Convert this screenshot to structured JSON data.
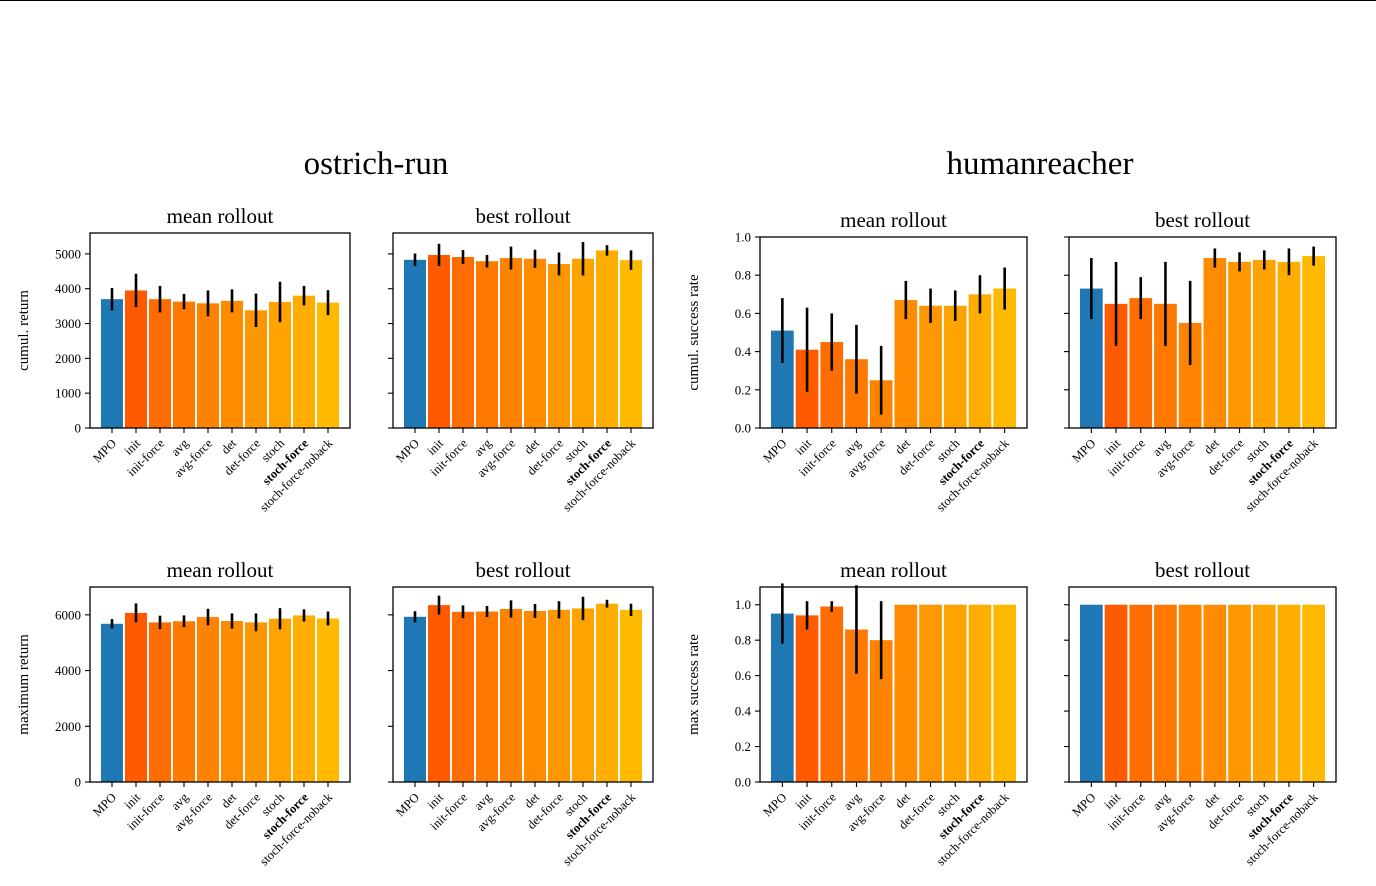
{
  "colors": {
    "MPO": "#1f77b4",
    "init": "#ff5a00",
    "init-force": "#ff6d00",
    "avg": "#ff7800",
    "avg-force": "#ff8200",
    "det": "#ff8c00",
    "det-force": "#ff9800",
    "stoch": "#ffa300",
    "stoch-force": "#ffae00",
    "stoch-force-noback": "#ffba00"
  },
  "groups": [
    {
      "title": "ostrich-run"
    },
    {
      "title": "humanreacher"
    }
  ],
  "chart_data": [
    {
      "id": "ostrich-mean-cumul",
      "group": 0,
      "type": "bar",
      "title": "mean rollout",
      "ylabel": "cumul. return",
      "ylim": [
        0,
        5600
      ],
      "yticks": [
        0,
        1000,
        2000,
        3000,
        4000,
        5000
      ],
      "show_yticklabels": true,
      "categories": [
        "MPO",
        "init",
        "init-force",
        "avg",
        "avg-force",
        "det",
        "det-force",
        "stoch",
        "stoch-force",
        "stoch-force-noback"
      ],
      "values": [
        3700,
        3950,
        3700,
        3630,
        3580,
        3650,
        3380,
        3620,
        3800,
        3600
      ],
      "errors": [
        320,
        480,
        380,
        220,
        370,
        330,
        480,
        580,
        280,
        360
      ]
    },
    {
      "id": "ostrich-best-cumul",
      "group": 0,
      "type": "bar",
      "title": "best rollout",
      "ylabel": "",
      "ylim": [
        0,
        5600
      ],
      "yticks": [
        0,
        1000,
        2000,
        3000,
        4000,
        5000
      ],
      "show_yticklabels": false,
      "categories": [
        "MPO",
        "init",
        "init-force",
        "avg",
        "avg-force",
        "det",
        "det-force",
        "stoch",
        "stoch-force",
        "stoch-force-noback"
      ],
      "values": [
        4830,
        4970,
        4910,
        4790,
        4880,
        4860,
        4710,
        4860,
        5100,
        4820
      ],
      "errors": [
        180,
        320,
        200,
        180,
        330,
        260,
        330,
        480,
        150,
        280
      ]
    },
    {
      "id": "humanreacher-mean-cumul",
      "group": 1,
      "type": "bar",
      "title": "mean rollout",
      "ylabel": "cumul. success rate",
      "ylim": [
        0,
        1.0
      ],
      "yticks": [
        0.0,
        0.2,
        0.4,
        0.6,
        0.8,
        1.0
      ],
      "show_yticklabels": true,
      "categories": [
        "MPO",
        "init",
        "init-force",
        "avg",
        "avg-force",
        "det",
        "det-force",
        "stoch",
        "stoch-force",
        "stoch-force-noback"
      ],
      "values": [
        0.51,
        0.41,
        0.45,
        0.36,
        0.25,
        0.67,
        0.64,
        0.64,
        0.7,
        0.73
      ],
      "errors": [
        0.17,
        0.22,
        0.15,
        0.18,
        0.18,
        0.1,
        0.09,
        0.08,
        0.1,
        0.11
      ]
    },
    {
      "id": "humanreacher-best-cumul",
      "group": 1,
      "type": "bar",
      "title": "best rollout",
      "ylabel": "",
      "ylim": [
        0,
        1.0
      ],
      "yticks": [
        0.0,
        0.2,
        0.4,
        0.6,
        0.8,
        1.0
      ],
      "show_yticklabels": false,
      "categories": [
        "MPO",
        "init",
        "init-force",
        "avg",
        "avg-force",
        "det",
        "det-force",
        "stoch",
        "stoch-force",
        "stoch-force-noback"
      ],
      "values": [
        0.73,
        0.65,
        0.68,
        0.65,
        0.55,
        0.89,
        0.87,
        0.88,
        0.87,
        0.9
      ],
      "errors": [
        0.16,
        0.22,
        0.11,
        0.22,
        0.22,
        0.05,
        0.05,
        0.05,
        0.07,
        0.05
      ]
    },
    {
      "id": "ostrich-mean-max",
      "group": 0,
      "type": "bar",
      "title": "mean rollout",
      "ylabel": "maximum return",
      "ylim": [
        0,
        7000
      ],
      "yticks": [
        0,
        2000,
        4000,
        6000
      ],
      "show_yticklabels": true,
      "categories": [
        "MPO",
        "init",
        "init-force",
        "avg",
        "avg-force",
        "det",
        "det-force",
        "stoch",
        "stoch-force",
        "stoch-force-noback"
      ],
      "values": [
        5680,
        6070,
        5730,
        5770,
        5920,
        5780,
        5730,
        5860,
        5980,
        5870
      ],
      "errors": [
        170,
        340,
        240,
        210,
        300,
        270,
        320,
        380,
        220,
        250
      ]
    },
    {
      "id": "ostrich-best-max",
      "group": 0,
      "type": "bar",
      "title": "best rollout",
      "ylabel": "",
      "ylim": [
        0,
        7000
      ],
      "yticks": [
        0,
        2000,
        4000,
        6000
      ],
      "show_yticklabels": false,
      "categories": [
        "MPO",
        "init",
        "init-force",
        "avg",
        "avg-force",
        "det",
        "det-force",
        "stoch",
        "stoch-force",
        "stoch-force-noback"
      ],
      "values": [
        5930,
        6350,
        6110,
        6120,
        6210,
        6140,
        6180,
        6230,
        6400,
        6180
      ],
      "errors": [
        200,
        340,
        230,
        200,
        310,
        250,
        310,
        420,
        140,
        220
      ]
    },
    {
      "id": "humanreacher-mean-max",
      "group": 1,
      "type": "bar",
      "title": "mean rollout",
      "ylabel": "max success rate",
      "ylim": [
        0,
        1.1
      ],
      "yticks": [
        0.0,
        0.2,
        0.4,
        0.6,
        0.8,
        1.0
      ],
      "show_yticklabels": true,
      "categories": [
        "MPO",
        "init",
        "init-force",
        "avg",
        "avg-force",
        "det",
        "det-force",
        "stoch",
        "stoch-force",
        "stoch-force-noback"
      ],
      "values": [
        0.95,
        0.94,
        0.99,
        0.86,
        0.8,
        1.0,
        1.0,
        1.0,
        1.0,
        1.0
      ],
      "errors": [
        0.17,
        0.08,
        0.03,
        0.25,
        0.22,
        0,
        0,
        0,
        0,
        0
      ]
    },
    {
      "id": "humanreacher-best-max",
      "group": 1,
      "type": "bar",
      "title": "best rollout",
      "ylabel": "",
      "ylim": [
        0,
        1.1
      ],
      "yticks": [
        0.0,
        0.2,
        0.4,
        0.6,
        0.8,
        1.0
      ],
      "show_yticklabels": false,
      "categories": [
        "MPO",
        "init",
        "init-force",
        "avg",
        "avg-force",
        "det",
        "det-force",
        "stoch",
        "stoch-force",
        "stoch-force-noback"
      ],
      "values": [
        1.0,
        1.0,
        1.0,
        1.0,
        1.0,
        1.0,
        1.0,
        1.0,
        1.0,
        1.0
      ],
      "errors": [
        0,
        0,
        0,
        0,
        0,
        0,
        0,
        0,
        0,
        0
      ]
    }
  ]
}
